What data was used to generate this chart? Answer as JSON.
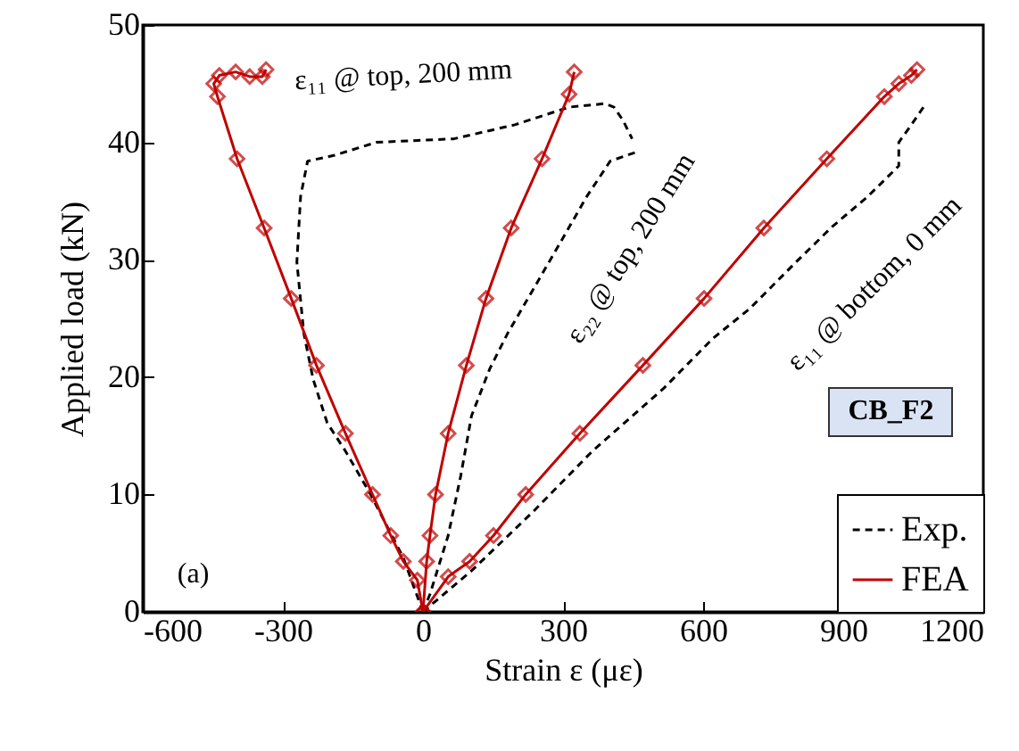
{
  "chart_data": {
    "type": "line",
    "xlabel": "Strain ε (με)",
    "ylabel": "Applied  load (kN)",
    "xlim": [
      -600,
      1200
    ],
    "xticks": [
      -600,
      -300,
      0,
      300,
      600,
      900,
      1200
    ],
    "ylim": [
      0,
      50
    ],
    "yticks": [
      0,
      10,
      20,
      30,
      40,
      50
    ],
    "grid": false,
    "legend": "bottom right",
    "annotations": [
      "ε₁₁ @ top, 200 mm",
      "ε₂₂ @ top, 200 mm",
      "ε₁₁ @ bottom, 0 mm",
      "CB_F2",
      "(a)"
    ],
    "series": [
      {
        "name": "Exp.",
        "color": "#000000",
        "line_style": "dashed",
        "marker": "none",
        "x": [
          0,
          -42,
          -112,
          -166,
          -205,
          -235,
          -255,
          -270,
          -262,
          -247,
          -189,
          -100,
          66,
          197,
          313,
          390,
          409,
          428,
          448
        ],
        "values": [
          0,
          4.6,
          10.0,
          13.7,
          16.1,
          19.8,
          23.7,
          29.8,
          35.4,
          38.4,
          38.9,
          40.0,
          40.3,
          41.5,
          43.0,
          43.3,
          43.0,
          41.9,
          40.3
        ]
      },
      {
        "color": "#000000",
        "line_style": "dashed",
        "marker": "none",
        "x": [
          0,
          15,
          54,
          81,
          104,
          143,
          181,
          235,
          286,
          351,
          401,
          459
        ],
        "values": [
          0,
          1.5,
          6.5,
          11.6,
          16.7,
          20.7,
          23.7,
          27.4,
          30.9,
          35.4,
          38.4,
          39.2
        ]
      },
      {
        "color": "#000000",
        "line_style": "dashed",
        "marker": "none",
        "x": [
          0,
          104,
          235,
          363,
          517,
          621,
          699,
          799,
          876,
          953,
          1019,
          1019,
          1046,
          1077
        ],
        "values": [
          0,
          3.5,
          8.5,
          13.7,
          19.1,
          23.3,
          25.8,
          29.8,
          32.8,
          35.4,
          38.0,
          40.0,
          41.5,
          43.3
        ]
      },
      {
        "name": "FEA",
        "color": "#c00000",
        "line_style": "solid",
        "marker": "diamond",
        "x": [
          0,
          -12,
          -42,
          -69,
          -108,
          -166,
          -228,
          -282,
          -340,
          -398,
          -440,
          -448,
          -436,
          -401,
          -371,
          -344,
          -336
        ],
        "values": [
          0,
          2.7,
          4.3,
          6.5,
          10.0,
          15.2,
          21.0,
          26.7,
          32.7,
          38.6,
          43.9,
          45.0,
          45.7,
          46.0,
          45.6,
          45.6,
          46.2
        ]
      },
      {
        "color": "#c00000",
        "line_style": "solid",
        "marker": "diamond",
        "x": [
          0,
          8,
          15,
          27,
          54,
          93,
          135,
          189,
          255,
          313,
          324
        ],
        "values": [
          0,
          4.3,
          6.5,
          10.0,
          15.2,
          21.0,
          26.7,
          32.7,
          38.6,
          44.1,
          46.0
        ]
      },
      {
        "color": "#c00000",
        "line_style": "solid",
        "marker": "diamond",
        "x": [
          0,
          54,
          100,
          151,
          220,
          336,
          471,
          602,
          730,
          865,
          988,
          1019,
          1046,
          1058
        ],
        "values": [
          0,
          3.0,
          4.3,
          6.5,
          10.0,
          15.2,
          21.0,
          26.7,
          32.7,
          38.6,
          43.9,
          45.0,
          45.7,
          46.2
        ]
      }
    ]
  }
}
